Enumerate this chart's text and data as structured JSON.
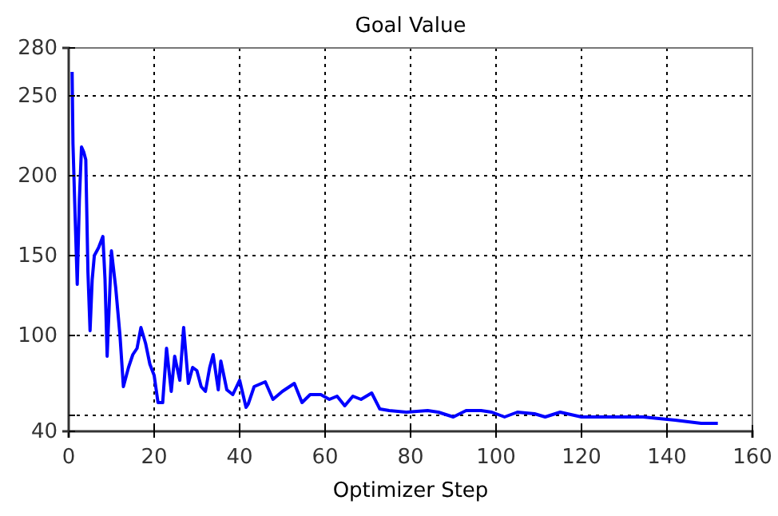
{
  "chart_data": {
    "type": "line",
    "title": "Goal Value",
    "xlabel": "Optimizer Step",
    "series": [
      {
        "color": "#0000ff",
        "x": [
          0.8,
          1,
          1.5,
          2,
          2.5,
          3,
          3.5,
          4,
          4.5,
          5,
          5.5,
          6,
          7,
          8,
          8.5,
          9,
          10,
          11,
          11.5,
          12,
          12.8,
          14,
          15,
          16,
          16.9,
          18,
          19,
          20,
          20.9,
          22,
          22.9,
          24,
          24.8,
          26,
          26.9,
          28,
          29,
          30,
          31,
          32,
          33,
          33.8,
          35,
          35.6,
          37,
          38.4,
          40,
          41.5,
          42,
          43.4,
          46,
          47.8,
          50,
          52.8,
          54.6,
          56.5,
          59,
          61,
          62.8,
          64.6,
          66.5,
          68.4,
          70.9,
          72.8,
          75,
          79,
          84,
          86.5,
          90,
          93,
          96.5,
          99,
          102,
          105,
          109,
          111.5,
          115,
          120,
          126.9,
          134.4,
          141.9,
          148,
          151.9
        ],
        "values": [
          265,
          220,
          175,
          132,
          185,
          218,
          215,
          210,
          140,
          103,
          135,
          150,
          155,
          162,
          135,
          87,
          153,
          130,
          115,
          100,
          68,
          80,
          88,
          92,
          105,
          95,
          82,
          75,
          58,
          58,
          92,
          65,
          87,
          72,
          105,
          70,
          80,
          78,
          68,
          65,
          80,
          88,
          66,
          84,
          66,
          63,
          72,
          55,
          57,
          68,
          71,
          60,
          65,
          70,
          58,
          63,
          63,
          60,
          62,
          56,
          62,
          60,
          64,
          54,
          53,
          52,
          53,
          52,
          49,
          53,
          53,
          52,
          49,
          52,
          51,
          49,
          52,
          49,
          49,
          49,
          47,
          45,
          45
        ]
      }
    ],
    "xlim": [
      0,
      160
    ],
    "xticks": [
      0,
      20,
      40,
      60,
      80,
      100,
      120,
      140,
      160
    ],
    "ylim": [
      40,
      280
    ],
    "yticks": [
      40,
      {
        "value": 50,
        "label": null
      },
      100,
      150,
      200,
      250,
      280
    ],
    "grid": true,
    "marker": "none",
    "line_style": "solid"
  }
}
